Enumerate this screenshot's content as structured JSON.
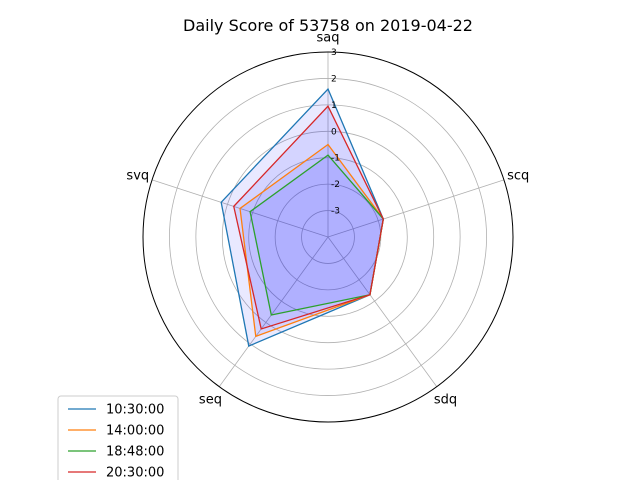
{
  "chart_data": {
    "type": "radar",
    "title": "Daily Score of 53758 on 2019-04-22",
    "axes": [
      "saq",
      "scq",
      "sdq",
      "seq",
      "svq"
    ],
    "rlim": [
      -4,
      3
    ],
    "rticks": [
      "-3",
      "-2",
      "-1",
      "0",
      "1",
      "2",
      "3"
    ],
    "grid": true,
    "legend_position": "lower-left",
    "fill_color": "#0000ff",
    "fill_opacity": 0.35,
    "series": [
      {
        "name": "10:30:00",
        "color": "#1f77b4",
        "values": [
          1.6,
          -1.8,
          -1.3,
          1.1,
          0.25
        ]
      },
      {
        "name": "14:00:00",
        "color": "#ff7f0e",
        "values": [
          -0.5,
          -1.8,
          -1.3,
          0.65,
          -0.5
        ]
      },
      {
        "name": "18:48:00",
        "color": "#2ca02c",
        "values": [
          -0.9,
          -1.8,
          -1.3,
          -0.35,
          -0.9
        ]
      },
      {
        "name": "20:30:00",
        "color": "#d62728",
        "values": [
          0.95,
          -1.8,
          -1.3,
          0.3,
          -0.25
        ]
      }
    ]
  }
}
